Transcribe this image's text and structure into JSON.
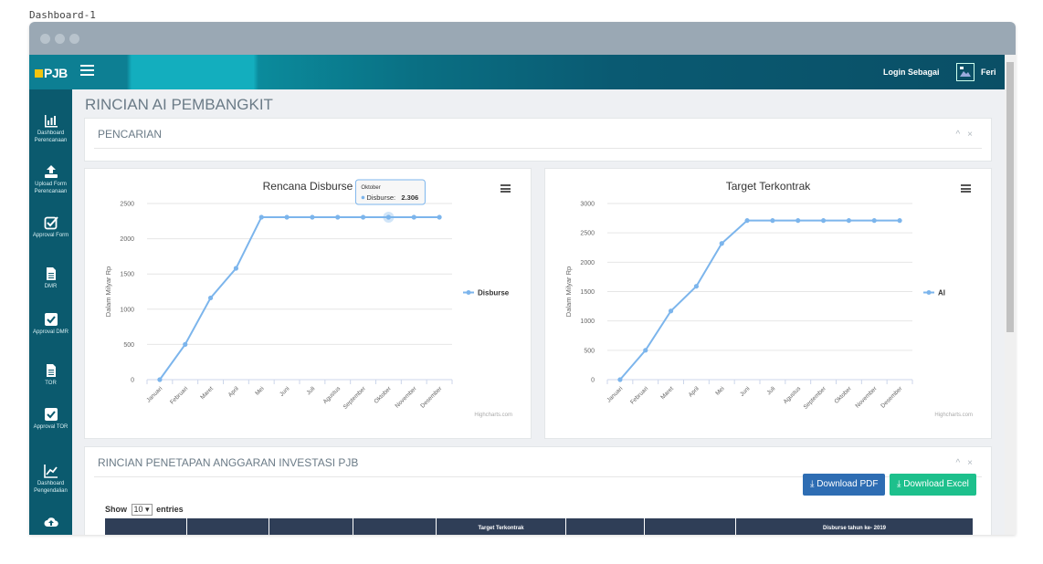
{
  "caption": "Dashboard-1",
  "navbar": {
    "logo_text": "PJB",
    "login_label": "Login Sebagai",
    "user_name": "Feri"
  },
  "sidebar": {
    "items": [
      {
        "label": "Dashboard Perencanaan",
        "icon": "bar-chart-icon"
      },
      {
        "label": "Upload Form Perencanaan",
        "icon": "upload-icon"
      },
      {
        "label": "Approval Form",
        "icon": "checkbox-icon"
      },
      {
        "label": "DMR",
        "icon": "document-icon"
      },
      {
        "label": "Approval DMR",
        "icon": "check-square-icon"
      },
      {
        "label": "TOR",
        "icon": "document-icon"
      },
      {
        "label": "Approval TOR",
        "icon": "check-square-icon"
      },
      {
        "label": "Dashboard Pengendalian",
        "icon": "line-chart-icon"
      }
    ]
  },
  "page_title": "RINCIAN AI PEMBANGKIT",
  "search_panel": {
    "title": "PENCARIAN"
  },
  "chart_data": [
    {
      "type": "line",
      "title": "Rencana Disburse",
      "ylabel": "Dalam Milyar Rp",
      "categories": [
        "Januari",
        "Februari",
        "Maret",
        "April",
        "Mei",
        "Juni",
        "Juli",
        "Agustus",
        "September",
        "Oktober",
        "November",
        "Desember"
      ],
      "yticks": [
        0,
        500,
        1000,
        1500,
        2000,
        2500
      ],
      "ylim": [
        0,
        2500
      ],
      "series": [
        {
          "name": "Disburse",
          "values": [
            0,
            500,
            1160,
            1580,
            2306,
            2306,
            2306,
            2306,
            2306,
            2306,
            2306,
            2306
          ]
        }
      ],
      "tooltip": {
        "category": "Oktober",
        "label": "Disburse",
        "value": "2.306"
      },
      "legend": "right",
      "credits": "Highcharts.com",
      "color": "#7cb5ec"
    },
    {
      "type": "line",
      "title": "Target Terkontrak",
      "ylabel": "Dalam Milyar Rp",
      "categories": [
        "Januari",
        "Februari",
        "Maret",
        "April",
        "Mei",
        "Juni",
        "Juli",
        "Agustus",
        "September",
        "Oktober",
        "November",
        "Desember"
      ],
      "yticks": [
        0,
        500,
        1000,
        1500,
        2000,
        2500,
        3000
      ],
      "ylim": [
        0,
        3000
      ],
      "series": [
        {
          "name": "AI",
          "values": [
            0,
            500,
            1170,
            1590,
            2320,
            2710,
            2710,
            2710,
            2710,
            2710,
            2710,
            2710
          ]
        }
      ],
      "legend": "right",
      "credits": "Highcharts.com",
      "color": "#7cb5ec"
    }
  ],
  "rincian_panel": {
    "title": "RINCIAN PENETAPAN ANGGARAN INVESTASI PJB",
    "download_pdf": "Download PDF",
    "download_excel": "Download Excel",
    "show_label": "Show",
    "entries_value": "10",
    "entries_label": "entries",
    "table_headers": [
      "",
      "",
      "",
      "",
      "Target Terkontrak",
      "",
      "",
      "Disburse tahun ke- 2019"
    ]
  }
}
